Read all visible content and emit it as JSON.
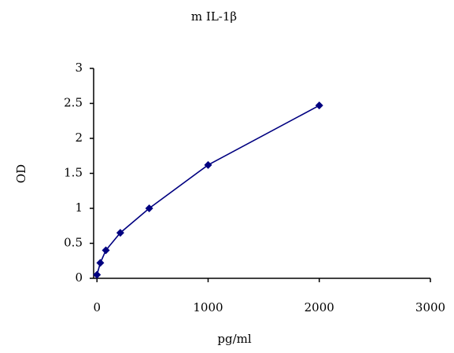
{
  "chart_data": {
    "type": "scatter",
    "title": "m IL-1β",
    "xlabel": "pg/ml",
    "ylabel": "OD",
    "x": [
      0,
      30,
      80,
      210,
      470,
      1000,
      2000
    ],
    "series": [
      {
        "name": "OD",
        "color": "#000080",
        "values": [
          0.05,
          0.22,
          0.4,
          0.65,
          1.0,
          1.62,
          2.47
        ]
      }
    ],
    "xlim": [
      -30,
      3000
    ],
    "xticks": [
      0,
      1000,
      2000,
      3000
    ],
    "ylim": [
      0,
      3
    ],
    "yticks": [
      0,
      0.5,
      1,
      1.5,
      2,
      2.5,
      3
    ],
    "grid": false
  }
}
